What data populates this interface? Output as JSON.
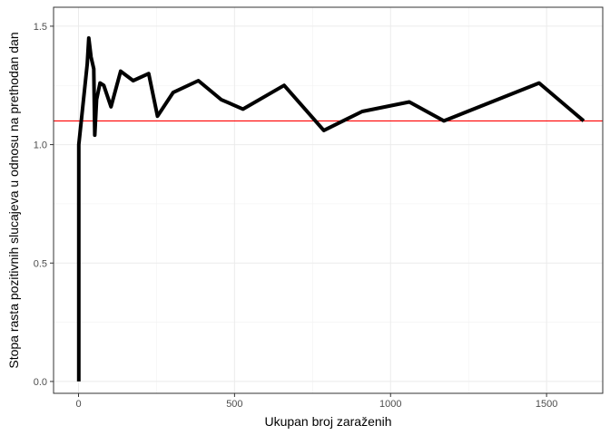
{
  "chart_data": {
    "type": "line",
    "title": "",
    "xlabel": "Ukupan broj zaraženih",
    "ylabel": "Stopa rasta pozitivnih slucajeva u odnosu na prethodan dan",
    "xlim": [
      -80,
      1680
    ],
    "ylim": [
      -0.05,
      1.58
    ],
    "x_ticks": [
      0,
      500,
      1000,
      1500
    ],
    "y_ticks": [
      0.0,
      0.5,
      1.0,
      1.5
    ],
    "x_tick_labels": [
      "0",
      "500",
      "1000",
      "1500"
    ],
    "y_tick_labels": [
      "0.0",
      "0.5",
      "1.0",
      "1.5"
    ],
    "grid": true,
    "reference_line": {
      "y": 1.1,
      "color": "#ff0000"
    },
    "series": [
      {
        "color": "#000000",
        "x": [
          1,
          1,
          28,
          33,
          40,
          49,
          52,
          58,
          69,
          81,
          104,
          135,
          175,
          225,
          253,
          303,
          384,
          457,
          527,
          659,
          786,
          909,
          1060,
          1171,
          1476,
          1619
        ],
        "y": [
          0.0,
          1.0,
          1.34,
          1.45,
          1.37,
          1.32,
          1.04,
          1.19,
          1.26,
          1.25,
          1.16,
          1.31,
          1.27,
          1.3,
          1.12,
          1.22,
          1.27,
          1.19,
          1.15,
          1.25,
          1.06,
          1.14,
          1.18,
          1.1,
          1.26,
          1.1
        ]
      }
    ]
  }
}
